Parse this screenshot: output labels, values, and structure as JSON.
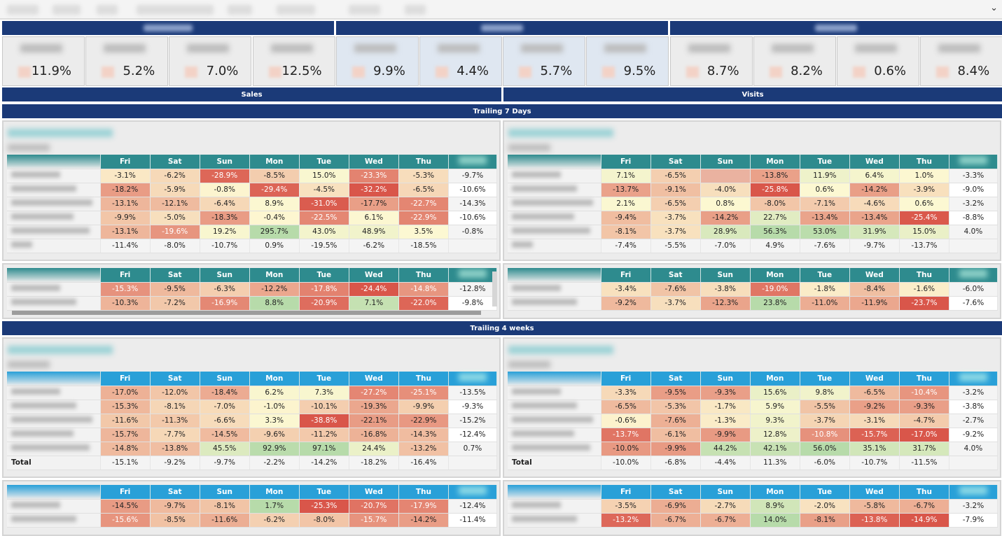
{
  "filter_bar": {
    "expand_icon": "chevron-down-icon",
    "pill_count": 8
  },
  "kpis": [
    {
      "value": "11.9%"
    },
    {
      "value": "5.2%"
    },
    {
      "value": "7.0%"
    },
    {
      "value": "12.5%"
    },
    {
      "value": "9.9%"
    },
    {
      "value": "4.4%"
    },
    {
      "value": "5.7%"
    },
    {
      "value": "9.5%"
    },
    {
      "value": "8.7%"
    },
    {
      "value": "8.2%"
    },
    {
      "value": "0.6%"
    },
    {
      "value": "8.4%"
    }
  ],
  "metric_headers": {
    "sales": "Sales",
    "visits": "Visits"
  },
  "colors": {
    "navy": "#1b3a78",
    "teal_header": "#2e8b8e",
    "blue_header": "#29a0d8",
    "neg": "#d9564a",
    "mid": "#fdf8d2",
    "pos": "#b7dbaa"
  },
  "days": [
    "Fri",
    "Sat",
    "Sun",
    "Mon",
    "Tue",
    "Wed",
    "Thu"
  ],
  "sections": [
    {
      "title": "Trailing 7 Days",
      "header": "teal",
      "panels": [
        {
          "main": {
            "rows": [
              {
                "cells": [
                  "-3.1%",
                  "-6.2%",
                  "-28.9%",
                  "-8.5%",
                  "15.0%",
                  "-23.3%",
                  "-5.3%"
                ],
                "total": "-9.7%"
              },
              {
                "cells": [
                  "-18.2%",
                  "-5.9%",
                  "-0.8%",
                  "-29.4%",
                  "-4.5%",
                  "-32.2%",
                  "-6.5%"
                ],
                "total": "-10.6%"
              },
              {
                "cells": [
                  "-13.1%",
                  "-12.1%",
                  "-6.4%",
                  "8.9%",
                  "-31.0%",
                  "-17.7%",
                  "-22.7%"
                ],
                "total": "-14.3%"
              },
              {
                "cells": [
                  "-9.9%",
                  "-5.0%",
                  "-18.3%",
                  "-0.4%",
                  "-22.5%",
                  "6.1%",
                  "-22.9%"
                ],
                "total": "-10.6%"
              },
              {
                "cells": [
                  "-13.1%",
                  "-19.6%",
                  "19.2%",
                  "295.7%",
                  "43.0%",
                  "48.9%",
                  "3.5%"
                ],
                "total": "-0.8%"
              }
            ],
            "total_row": {
              "label": "",
              "cells": [
                "-11.4%",
                "-8.0%",
                "-10.7%",
                "0.9%",
                "-19.5%",
                "-6.2%",
                "-18.5%"
              ]
            }
          },
          "sub": {
            "rows": [
              {
                "cells": [
                  "-15.3%",
                  "-9.5%",
                  "-6.3%",
                  "-12.2%",
                  "-17.8%",
                  "-24.4%",
                  "-14.8%"
                ],
                "total": "-12.8%"
              },
              {
                "cells": [
                  "-10.3%",
                  "-7.2%",
                  "-16.9%",
                  "8.8%",
                  "-20.9%",
                  "7.1%",
                  "-22.0%"
                ],
                "total": "-9.8%"
              }
            ]
          }
        },
        {
          "main": {
            "rows": [
              {
                "cells": [
                  "7.1%",
                  "-6.5%",
                  "",
                  "-13.8%",
                  "11.9%",
                  "6.4%",
                  "1.0%"
                ],
                "total": "-3.3%"
              },
              {
                "cells": [
                  "-13.7%",
                  "-9.1%",
                  "-4.0%",
                  "-25.8%",
                  "0.6%",
                  "-14.2%",
                  "-3.9%"
                ],
                "total": "-9.0%"
              },
              {
                "cells": [
                  "2.1%",
                  "-6.5%",
                  "0.8%",
                  "-8.0%",
                  "-7.1%",
                  "-4.6%",
                  "0.6%"
                ],
                "total": "-3.2%"
              },
              {
                "cells": [
                  "-9.4%",
                  "-3.7%",
                  "-14.2%",
                  "22.7%",
                  "-13.4%",
                  "-13.4%",
                  "-25.4%"
                ],
                "total": "-8.8%"
              },
              {
                "cells": [
                  "-8.1%",
                  "-3.7%",
                  "28.9%",
                  "56.3%",
                  "53.0%",
                  "31.9%",
                  "15.0%"
                ],
                "total": "4.0%"
              }
            ],
            "total_row": {
              "label": "",
              "cells": [
                "-7.4%",
                "-5.5%",
                "-7.0%",
                "4.9%",
                "-7.6%",
                "-9.7%",
                "-13.7%"
              ]
            }
          },
          "sub": {
            "rows": [
              {
                "cells": [
                  "-3.4%",
                  "-7.6%",
                  "-3.8%",
                  "-19.0%",
                  "-1.8%",
                  "-8.4%",
                  "-1.6%"
                ],
                "total": "-6.0%"
              },
              {
                "cells": [
                  "-9.2%",
                  "-3.7%",
                  "-12.3%",
                  "23.8%",
                  "-11.0%",
                  "-11.9%",
                  "-23.7%"
                ],
                "total": "-7.6%"
              }
            ]
          }
        }
      ]
    },
    {
      "title": "Trailing 4 weeks",
      "header": "blue",
      "panels": [
        {
          "main": {
            "rows": [
              {
                "cells": [
                  "-17.0%",
                  "-12.0%",
                  "-18.4%",
                  "6.2%",
                  "7.3%",
                  "-27.2%",
                  "-25.1%"
                ],
                "total": "-13.5%"
              },
              {
                "cells": [
                  "-15.3%",
                  "-8.1%",
                  "-7.0%",
                  "-1.0%",
                  "-10.1%",
                  "-19.3%",
                  "-9.9%"
                ],
                "total": "-9.3%"
              },
              {
                "cells": [
                  "-11.6%",
                  "-11.3%",
                  "-6.6%",
                  "3.3%",
                  "-38.8%",
                  "-22.1%",
                  "-22.9%"
                ],
                "total": "-15.2%"
              },
              {
                "cells": [
                  "-15.7%",
                  "-7.7%",
                  "-14.5%",
                  "-9.6%",
                  "-11.2%",
                  "-16.8%",
                  "-14.3%"
                ],
                "total": "-12.4%"
              },
              {
                "cells": [
                  "-14.8%",
                  "-13.8%",
                  "45.5%",
                  "92.9%",
                  "97.1%",
                  "24.4%",
                  "-13.2%"
                ],
                "total": "0.7%"
              }
            ],
            "total_row": {
              "label": "Total",
              "cells": [
                "-15.1%",
                "-9.2%",
                "-9.7%",
                "-2.2%",
                "-14.2%",
                "-18.2%",
                "-16.4%"
              ]
            }
          },
          "sub": {
            "rows": [
              {
                "cells": [
                  "-14.5%",
                  "-9.7%",
                  "-8.1%",
                  "1.7%",
                  "-25.3%",
                  "-20.7%",
                  "-17.9%"
                ],
                "total": "-12.4%"
              },
              {
                "cells": [
                  "-15.6%",
                  "-8.5%",
                  "-11.6%",
                  "-6.2%",
                  "-8.0%",
                  "-15.7%",
                  "-14.2%"
                ],
                "total": "-11.4%"
              }
            ]
          }
        },
        {
          "main": {
            "rows": [
              {
                "cells": [
                  "-3.3%",
                  "-9.5%",
                  "-9.3%",
                  "15.6%",
                  "9.8%",
                  "-6.5%",
                  "-10.4%"
                ],
                "total": "-3.2%"
              },
              {
                "cells": [
                  "-6.5%",
                  "-5.3%",
                  "-1.7%",
                  "5.9%",
                  "-5.5%",
                  "-9.2%",
                  "-9.3%"
                ],
                "total": "-3.8%"
              },
              {
                "cells": [
                  "-0.6%",
                  "-7.6%",
                  "-1.3%",
                  "9.3%",
                  "-3.7%",
                  "-3.1%",
                  "-4.7%"
                ],
                "total": "-2.7%"
              },
              {
                "cells": [
                  "-13.7%",
                  "-6.1%",
                  "-9.9%",
                  "12.8%",
                  "-10.8%",
                  "-15.7%",
                  "-17.0%"
                ],
                "total": "-9.2%"
              },
              {
                "cells": [
                  "-10.0%",
                  "-9.9%",
                  "44.2%",
                  "42.1%",
                  "56.0%",
                  "35.1%",
                  "31.7%"
                ],
                "total": "4.0%"
              }
            ],
            "total_row": {
              "label": "Total",
              "cells": [
                "-10.0%",
                "-6.8%",
                "-4.4%",
                "11.3%",
                "-6.0%",
                "-10.7%",
                "-11.5%"
              ]
            }
          },
          "sub": {
            "rows": [
              {
                "cells": [
                  "-3.5%",
                  "-6.9%",
                  "-2.7%",
                  "8.9%",
                  "-2.0%",
                  "-5.8%",
                  "-6.7%"
                ],
                "total": "-3.2%"
              },
              {
                "cells": [
                  "-13.2%",
                  "-6.7%",
                  "-6.7%",
                  "14.0%",
                  "-8.1%",
                  "-13.8%",
                  "-14.9%"
                ],
                "total": "-7.9%"
              }
            ]
          }
        }
      ]
    }
  ]
}
